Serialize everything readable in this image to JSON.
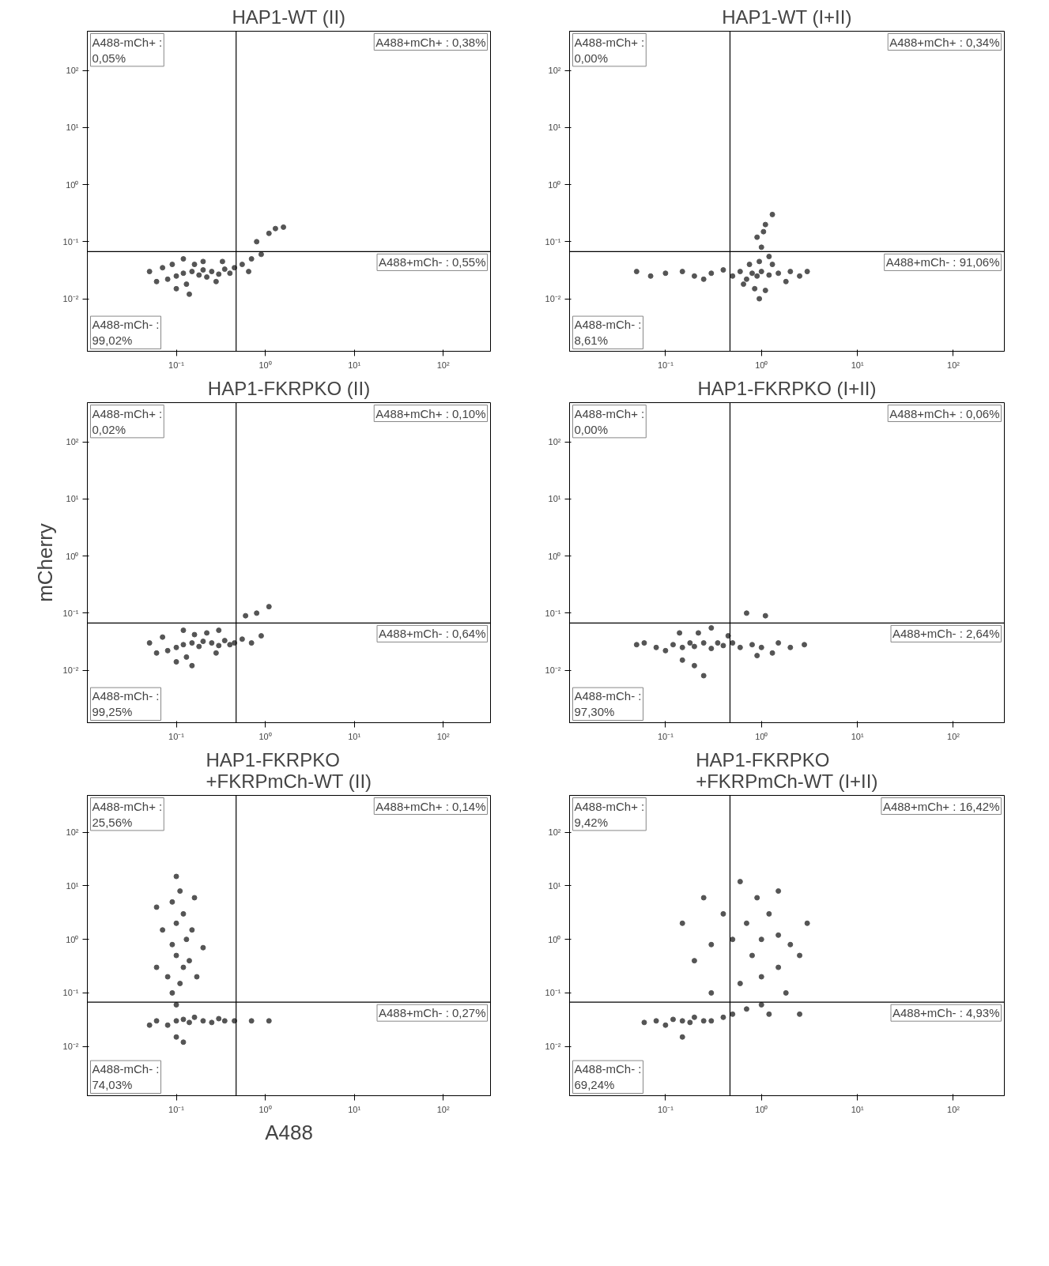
{
  "chart_data": [
    {
      "type": "scatter",
      "title": "HAP1-WT (II)",
      "log": "xy",
      "marker": "circle",
      "xlim": [
        0.01,
        340
      ],
      "ylim": [
        0.0012,
        490
      ],
      "xticks": [
        {
          "value": 0.1,
          "label": "10⁻¹"
        },
        {
          "value": 1,
          "label": "10⁰"
        },
        {
          "value": 10,
          "label": "10¹"
        },
        {
          "value": 100,
          "label": "10²"
        }
      ],
      "yticks": [
        {
          "value": 0.01,
          "label": "10⁻²"
        },
        {
          "value": 0.1,
          "label": "10⁻¹"
        },
        {
          "value": 1,
          "label": "10⁰"
        },
        {
          "value": 10,
          "label": "10¹"
        },
        {
          "value": 100,
          "label": "10²"
        }
      ],
      "ref_lines": [
        {
          "axis": "x",
          "value": 0.47,
          "color": "#000000"
        },
        {
          "axis": "y",
          "value": 0.067,
          "color": "#000000"
        }
      ],
      "annotations": [
        "A488-mCh+ :\n0,05%",
        "A488+mCh+ : 0,38%",
        "A488-mCh- :\n99,02%",
        "A488+mCh- : 0,55%"
      ],
      "x": [
        0.1,
        0.12,
        0.15,
        0.08,
        0.18,
        0.2,
        0.22,
        0.25,
        0.3,
        0.35,
        0.4,
        0.06,
        0.05,
        0.07,
        0.13,
        0.16,
        0.2,
        0.28,
        0.33,
        0.1,
        0.14,
        0.45,
        0.55,
        0.7,
        0.8,
        1.1,
        1.3,
        1.6,
        0.65,
        0.9,
        0.12,
        0.09
      ],
      "series": [
        {
          "color": "#555555",
          "values": [
            0.025,
            0.028,
            0.03,
            0.022,
            0.026,
            0.032,
            0.024,
            0.03,
            0.027,
            0.033,
            0.028,
            0.02,
            0.03,
            0.035,
            0.018,
            0.04,
            0.045,
            0.02,
            0.045,
            0.015,
            0.012,
            0.035,
            0.04,
            0.05,
            0.1,
            0.14,
            0.17,
            0.18,
            0.03,
            0.06,
            0.05,
            0.04
          ]
        }
      ]
    },
    {
      "type": "scatter",
      "title": "HAP1-WT (I+II)",
      "log": "xy",
      "marker": "circle",
      "xlim": [
        0.01,
        340
      ],
      "ylim": [
        0.0012,
        490
      ],
      "xticks": [
        {
          "value": 0.1,
          "label": "10⁻¹"
        },
        {
          "value": 1,
          "label": "10⁰"
        },
        {
          "value": 10,
          "label": "10¹"
        },
        {
          "value": 100,
          "label": "10²"
        }
      ],
      "yticks": [
        {
          "value": 0.01,
          "label": "10⁻²"
        },
        {
          "value": 0.1,
          "label": "10⁻¹"
        },
        {
          "value": 1,
          "label": "10⁰"
        },
        {
          "value": 10,
          "label": "10¹"
        },
        {
          "value": 100,
          "label": "10²"
        }
      ],
      "ref_lines": [
        {
          "axis": "x",
          "value": 0.47,
          "color": "#000000"
        },
        {
          "axis": "y",
          "value": 0.067,
          "color": "#000000"
        }
      ],
      "annotations": [
        "A488-mCh+ :\n0,00%",
        "A488+mCh+ : 0,34%",
        "A488-mCh- :\n8,61%",
        "A488+mCh- : 91,06%"
      ],
      "x": [
        0.9,
        0.8,
        1,
        0.7,
        1.2,
        0.6,
        1.5,
        0.5,
        2,
        0.4,
        2.5,
        0.3,
        3,
        0.85,
        1.1,
        0.95,
        0.75,
        1.3,
        1.8,
        0.65,
        0.2,
        0.15,
        0.1,
        0.07,
        0.05,
        0.25,
        1,
        0.9,
        1.05,
        1.1,
        1.3,
        0.95,
        1.2
      ],
      "series": [
        {
          "color": "#555555",
          "values": [
            0.025,
            0.028,
            0.03,
            0.022,
            0.026,
            0.03,
            0.028,
            0.025,
            0.03,
            0.032,
            0.025,
            0.028,
            0.03,
            0.015,
            0.014,
            0.045,
            0.04,
            0.04,
            0.02,
            0.018,
            0.025,
            0.03,
            0.028,
            0.025,
            0.03,
            0.022,
            0.08,
            0.12,
            0.15,
            0.2,
            0.3,
            0.01,
            0.055
          ]
        }
      ]
    },
    {
      "type": "scatter",
      "title": "HAP1-FKRPKO (II)",
      "ylabel": "mCherry",
      "log": "xy",
      "marker": "circle",
      "xlim": [
        0.01,
        340
      ],
      "ylim": [
        0.0012,
        490
      ],
      "xticks": [
        {
          "value": 0.1,
          "label": "10⁻¹"
        },
        {
          "value": 1,
          "label": "10⁰"
        },
        {
          "value": 10,
          "label": "10¹"
        },
        {
          "value": 100,
          "label": "10²"
        }
      ],
      "yticks": [
        {
          "value": 0.01,
          "label": "10⁻²"
        },
        {
          "value": 0.1,
          "label": "10⁻¹"
        },
        {
          "value": 1,
          "label": "10⁰"
        },
        {
          "value": 10,
          "label": "10¹"
        },
        {
          "value": 100,
          "label": "10²"
        }
      ],
      "ref_lines": [
        {
          "axis": "x",
          "value": 0.47,
          "color": "#000000"
        },
        {
          "axis": "y",
          "value": 0.067,
          "color": "#000000"
        }
      ],
      "annotations": [
        "A488-mCh+ :\n0,02%",
        "A488+mCh+ : 0,10%",
        "A488-mCh- :\n99,25%",
        "A488+mCh- : 0,64%"
      ],
      "x": [
        0.1,
        0.12,
        0.15,
        0.08,
        0.18,
        0.2,
        0.25,
        0.3,
        0.35,
        0.4,
        0.06,
        0.05,
        0.07,
        0.13,
        0.16,
        0.22,
        0.28,
        0.45,
        0.55,
        0.7,
        0.9,
        0.1,
        0.15,
        0.3,
        0.8,
        1.1,
        0.6,
        0.12
      ],
      "series": [
        {
          "color": "#555555",
          "values": [
            0.025,
            0.028,
            0.03,
            0.022,
            0.026,
            0.032,
            0.03,
            0.027,
            0.033,
            0.028,
            0.02,
            0.03,
            0.038,
            0.017,
            0.042,
            0.045,
            0.02,
            0.03,
            0.035,
            0.03,
            0.04,
            0.014,
            0.012,
            0.05,
            0.1,
            0.13,
            0.09,
            0.05
          ]
        }
      ]
    },
    {
      "type": "scatter",
      "title": "HAP1-FKRPKO (I+II)",
      "log": "xy",
      "marker": "circle",
      "xlim": [
        0.01,
        340
      ],
      "ylim": [
        0.0012,
        490
      ],
      "xticks": [
        {
          "value": 0.1,
          "label": "10⁻¹"
        },
        {
          "value": 1,
          "label": "10⁰"
        },
        {
          "value": 10,
          "label": "10¹"
        },
        {
          "value": 100,
          "label": "10²"
        }
      ],
      "yticks": [
        {
          "value": 0.01,
          "label": "10⁻²"
        },
        {
          "value": 0.1,
          "label": "10⁻¹"
        },
        {
          "value": 1,
          "label": "10⁰"
        },
        {
          "value": 10,
          "label": "10¹"
        },
        {
          "value": 100,
          "label": "10²"
        }
      ],
      "ref_lines": [
        {
          "axis": "x",
          "value": 0.47,
          "color": "#000000"
        },
        {
          "axis": "y",
          "value": 0.067,
          "color": "#000000"
        }
      ],
      "annotations": [
        "A488-mCh+ :\n0,00%",
        "A488+mCh+ : 0,06%",
        "A488-mCh- :\n97,30%",
        "A488+mCh- : 2,64%"
      ],
      "x": [
        0.15,
        0.12,
        0.18,
        0.1,
        0.2,
        0.25,
        0.3,
        0.35,
        0.08,
        0.06,
        0.05,
        0.4,
        0.5,
        0.6,
        0.8,
        1,
        1.5,
        2,
        2.8,
        0.15,
        0.2,
        0.25,
        0.14,
        0.22,
        0.3,
        0.45,
        0.7,
        1.1,
        0.9,
        1.3
      ],
      "series": [
        {
          "color": "#555555",
          "values": [
            0.025,
            0.028,
            0.03,
            0.022,
            0.026,
            0.03,
            0.024,
            0.03,
            0.025,
            0.03,
            0.028,
            0.027,
            0.03,
            0.025,
            0.028,
            0.025,
            0.03,
            0.025,
            0.028,
            0.015,
            0.012,
            0.008,
            0.045,
            0.045,
            0.055,
            0.04,
            0.1,
            0.09,
            0.018,
            0.02
          ]
        }
      ]
    },
    {
      "type": "scatter",
      "title": "HAP1-FKRPKO\n+FKRPmCh-WT (II)",
      "xlabel": "A488",
      "log": "xy",
      "marker": "circle",
      "xlim": [
        0.01,
        340
      ],
      "ylim": [
        0.0012,
        490
      ],
      "xticks": [
        {
          "value": 0.1,
          "label": "10⁻¹"
        },
        {
          "value": 1,
          "label": "10⁰"
        },
        {
          "value": 10,
          "label": "10¹"
        },
        {
          "value": 100,
          "label": "10²"
        }
      ],
      "yticks": [
        {
          "value": 0.01,
          "label": "10⁻²"
        },
        {
          "value": 0.1,
          "label": "10⁻¹"
        },
        {
          "value": 1,
          "label": "10⁰"
        },
        {
          "value": 10,
          "label": "10¹"
        },
        {
          "value": 100,
          "label": "10²"
        }
      ],
      "ref_lines": [
        {
          "axis": "x",
          "value": 0.47,
          "color": "#000000"
        },
        {
          "axis": "y",
          "value": 0.067,
          "color": "#000000"
        }
      ],
      "annotations": [
        "A488-mCh+ :\n25,56%",
        "A488+mCh+ : 0,14%",
        "A488-mCh- :\n74,03%",
        "A488+mCh- : 0,27%"
      ],
      "x": [
        0.1,
        0.12,
        0.14,
        0.08,
        0.16,
        0.2,
        0.25,
        0.3,
        0.35,
        0.06,
        0.05,
        0.1,
        0.12,
        0.45,
        0.1,
        0.09,
        0.11,
        0.08,
        0.12,
        0.1,
        0.09,
        0.13,
        0.07,
        0.1,
        0.12,
        0.09,
        0.11,
        0.1,
        0.14,
        0.06,
        0.17,
        0.15,
        0.2,
        0.06,
        0.16,
        1.1,
        0.7
      ],
      "series": [
        {
          "color": "#555555",
          "values": [
            0.03,
            0.032,
            0.028,
            0.025,
            0.035,
            0.03,
            0.028,
            0.033,
            0.03,
            0.03,
            0.025,
            0.015,
            0.012,
            0.03,
            0.06,
            0.1,
            0.15,
            0.2,
            0.3,
            0.5,
            0.8,
            1,
            1.5,
            2,
            3,
            5,
            8,
            15,
            0.4,
            0.3,
            0.2,
            1.5,
            0.7,
            4,
            6,
            0.03,
            0.03
          ]
        }
      ]
    },
    {
      "type": "scatter",
      "title": "HAP1-FKRPKO\n+FKRPmCh-WT (I+II)",
      "log": "xy",
      "marker": "circle",
      "xlim": [
        0.01,
        340
      ],
      "ylim": [
        0.0012,
        490
      ],
      "xticks": [
        {
          "value": 0.1,
          "label": "10⁻¹"
        },
        {
          "value": 1,
          "label": "10⁰"
        },
        {
          "value": 10,
          "label": "10¹"
        },
        {
          "value": 100,
          "label": "10²"
        }
      ],
      "yticks": [
        {
          "value": 0.01,
          "label": "10⁻²"
        },
        {
          "value": 0.1,
          "label": "10⁻¹"
        },
        {
          "value": 1,
          "label": "10⁰"
        },
        {
          "value": 10,
          "label": "10¹"
        },
        {
          "value": 100,
          "label": "10²"
        }
      ],
      "ref_lines": [
        {
          "axis": "x",
          "value": 0.47,
          "color": "#000000"
        },
        {
          "axis": "y",
          "value": 0.067,
          "color": "#000000"
        }
      ],
      "annotations": [
        "A488-mCh+ :\n9,42%",
        "A488+mCh+ : 16,42%",
        "A488-mCh- :\n69,24%",
        "A488+mCh- : 4,93%"
      ],
      "x": [
        0.15,
        0.12,
        0.18,
        0.1,
        0.2,
        0.25,
        0.3,
        0.08,
        0.06,
        0.4,
        0.15,
        0.5,
        0.7,
        1,
        0.3,
        0.6,
        1,
        1.5,
        0.8,
        0.5,
        1,
        1.5,
        2,
        0.3,
        0.2,
        0.7,
        1.2,
        0.4,
        0.9,
        1.5,
        0.6,
        2.5,
        3,
        0.25,
        1.8,
        2.5,
        0.15,
        1.2
      ],
      "series": [
        {
          "color": "#555555",
          "values": [
            0.03,
            0.032,
            0.028,
            0.025,
            0.035,
            0.03,
            0.03,
            0.03,
            0.028,
            0.035,
            0.015,
            0.04,
            0.05,
            0.06,
            0.1,
            0.15,
            0.2,
            0.3,
            0.5,
            1,
            1,
            1.2,
            0.8,
            0.8,
            0.4,
            2,
            3,
            3,
            6,
            8,
            12,
            0.5,
            2,
            6,
            0.1,
            0.04,
            2,
            0.04
          ]
        }
      ]
    }
  ]
}
